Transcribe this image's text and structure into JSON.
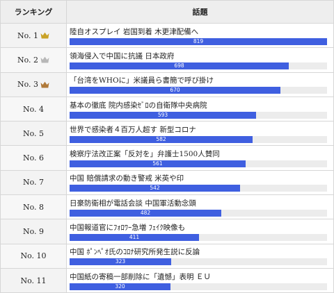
{
  "table": {
    "header_rank": "ランキング",
    "header_topic": "話題",
    "max_value": 819,
    "rows": [
      {
        "rank": "No. 1",
        "crown": "gold",
        "title": "陸自オスプレイ 岩国到着 木更津配備へ",
        "value": 819
      },
      {
        "rank": "No. 2",
        "crown": "silver",
        "title": "領海侵入で中国に抗議 日本政府",
        "value": 698
      },
      {
        "rank": "No. 3",
        "crown": "bronze",
        "title": "「台湾をWHOに」米議員ら書簡で呼び掛け",
        "value": 670
      },
      {
        "rank": "No. 4",
        "crown": "",
        "title": "基本の徹底 院内感染ｾﾞﾛの自衛隊中央病院",
        "value": 593
      },
      {
        "rank": "No. 5",
        "crown": "",
        "title": "世界で感染者４百万人超す 新型コロナ",
        "value": 582
      },
      {
        "rank": "No. 6",
        "crown": "",
        "title": "検察庁法改正案「反対を」弁護士1500人賛同",
        "value": 561
      },
      {
        "rank": "No. 7",
        "crown": "",
        "title": "中国 賠償請求の動き警戒 米英や印",
        "value": 542
      },
      {
        "rank": "No. 8",
        "crown": "",
        "title": "日豪防衛相が電話会談 中国軍活動念頭",
        "value": 482
      },
      {
        "rank": "No. 9",
        "crown": "",
        "title": "中国報道官にﾌｫﾛﾜｰ急増 ﾌｪｲｸ映像も",
        "value": 411
      },
      {
        "rank": "No. 10",
        "crown": "",
        "title": "中国 ﾎﾟﾝﾍﾟｵ氏のｺﾛﾅ研究所発生説に反論",
        "value": 323
      },
      {
        "rank": "No. 11",
        "crown": "",
        "title": "中国紙の寄稿一部削除に「遺憾」表明 ＥＵ",
        "value": 320
      }
    ]
  },
  "colors": {
    "bar": "#3f5fe0",
    "gold": "#c9a227",
    "silver": "#b8b8b8",
    "bronze": "#b07a3a"
  }
}
